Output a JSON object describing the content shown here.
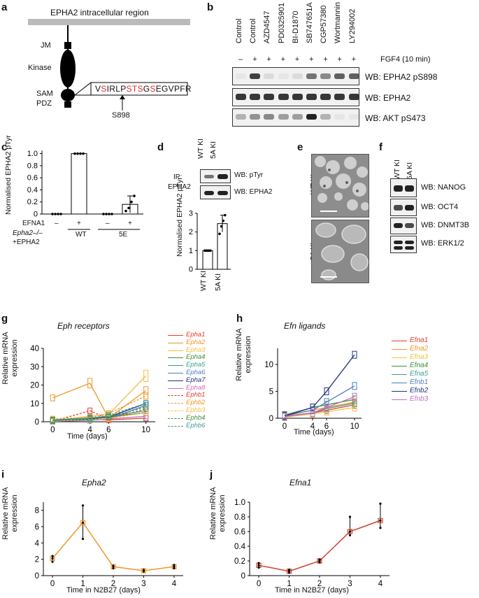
{
  "panels": {
    "a": {
      "label": "a",
      "title": "EPHA2 intracellular region",
      "domains": [
        "JM",
        "Kinase",
        "SAM",
        "PDZ"
      ],
      "sequence": [
        {
          "t": "V",
          "red": false
        },
        {
          "t": "S",
          "red": true
        },
        {
          "t": "IRLP",
          "red": false
        },
        {
          "t": "STS",
          "red": true
        },
        {
          "t": "G",
          "red": false
        },
        {
          "t": "S",
          "red": true
        },
        {
          "t": "EGVPFR",
          "red": false
        }
      ],
      "site": "S898"
    },
    "b": {
      "label": "b",
      "lanes": [
        "Control",
        "Control",
        "AZD4547",
        "PD0325901",
        "BI-D1870",
        "SB747651A",
        "CGP57380",
        "Wortmannin",
        "LY294002"
      ],
      "signs": [
        "–",
        "+",
        "+",
        "+",
        "+",
        "+",
        "+",
        "+",
        "+"
      ],
      "treatment": "FGF4 (10 min)",
      "blots": [
        "WB: EPHA2 pS898",
        "WB: EPHA2",
        "WB: AKT pS473"
      ],
      "intensity": [
        [
          0.05,
          0.85,
          0.1,
          0.05,
          0.1,
          0.6,
          0.5,
          0.7,
          0.7
        ],
        [
          0.9,
          0.9,
          0.9,
          0.9,
          0.9,
          0.9,
          0.9,
          0.9,
          0.9
        ],
        [
          0.3,
          0.45,
          0.5,
          0.4,
          0.4,
          1.0,
          0.3,
          0.05,
          0.05
        ]
      ]
    },
    "c": {
      "label": "c",
      "ylabel": "Normalised EPHA2 pTyr",
      "yticks": [
        "0",
        "0.2",
        "0.4",
        "0.6",
        "0.8",
        "1.0"
      ],
      "efna_label": "EFNA1",
      "signs": [
        "–",
        "+",
        "–",
        "+"
      ],
      "groups": [
        "WT",
        "5E"
      ],
      "genotype_line1": "Epha2–/–",
      "genotype_line2": "+EPHA2"
    },
    "d": {
      "label": "d",
      "lanes": [
        "WT KI",
        "5A KI"
      ],
      "ip_label_1": "IP:",
      "ip_label_2": "EPHA2",
      "blots": [
        "WB: pTyr",
        "WB: EPHA2"
      ],
      "ylabel": "Normalised EPHA2 pTyr",
      "yticks": [
        "0",
        "1",
        "2",
        "3"
      ],
      "xlabels": [
        "WT KI",
        "5A KI"
      ]
    },
    "e": {
      "label": "e",
      "rows": [
        "WT KI",
        "5A KI"
      ]
    },
    "f": {
      "label": "f",
      "lanes": [
        "WT KI",
        "5A KI"
      ],
      "blots": [
        "WB: NANOG",
        "WB: OCT4",
        "WB: DNMT3B",
        "WB: ERK1/2"
      ]
    },
    "g": {
      "label": "g",
      "title": "Eph receptors",
      "ylabel_1": "Relative mRNA",
      "ylabel_2": "expression",
      "xlabel": "Time (days)",
      "yticks": [
        "0",
        "10",
        "20",
        "30",
        "40"
      ],
      "xticks": [
        "0",
        "4",
        "6",
        "10"
      ],
      "legend": [
        "Epha1",
        "Epha2",
        "Epha3",
        "Epha4",
        "Epha5",
        "Epha6",
        "Epha7",
        "Epha8",
        "Ephb1",
        "Ephb2",
        "Ephb3",
        "Ephb4",
        "Ephb6"
      ]
    },
    "h": {
      "label": "h",
      "title": "Efn ligands",
      "ylabel_1": "Relative mRNA",
      "ylabel_2": "expression",
      "xlabel": "Time (days)",
      "yticks": [
        "0",
        "5",
        "10"
      ],
      "xticks": [
        "0",
        "4",
        "6",
        "10"
      ],
      "legend": [
        "Efna1",
        "Efna2",
        "Efna3",
        "Efna4",
        "Efna5",
        "Efnb1",
        "Efnb2",
        "Efnb3"
      ]
    },
    "i": {
      "label": "i",
      "title": "Epha2",
      "ylabel_1": "Relative mRNA",
      "ylabel_2": "expression",
      "xlabel": "Time in N2B27 (days)",
      "yticks": [
        "0",
        "2",
        "4",
        "6",
        "8"
      ],
      "xticks": [
        "0",
        "1",
        "2",
        "3",
        "4"
      ]
    },
    "j": {
      "label": "j",
      "title": "Efna1",
      "ylabel_1": "Relative mRNA",
      "ylabel_2": "expression",
      "xlabel": "Time in N2B27 (days)",
      "yticks": [
        "0",
        "0.2",
        "0.4",
        "0.6",
        "0.8",
        "1.0"
      ],
      "xticks": [
        "0",
        "1",
        "2",
        "3",
        "4"
      ]
    }
  },
  "colors": {
    "g_series": [
      "#e0402a",
      "#f0962a",
      "#f2c040",
      "#3e8e3e",
      "#3aa08a",
      "#4a7fc0",
      "#23307a",
      "#c070c0",
      "#e0402a",
      "#f0962a",
      "#f2c040",
      "#3e8e3e",
      "#3aa08a"
    ],
    "h_series": [
      "#e0402a",
      "#f0962a",
      "#f2c040",
      "#3e8e3e",
      "#3aa08a",
      "#4a7fc0",
      "#23307a",
      "#c070c0"
    ],
    "epha2": "#f0962a",
    "efna1": "#d0402a",
    "sequence_red": "#e03030"
  },
  "chart_data": [
    {
      "type": "bar",
      "panel": "c",
      "categories": [
        "WT –",
        "WT +",
        "5E –",
        "5E +"
      ],
      "values": [
        0.0,
        1.0,
        0.0,
        0.16
      ],
      "errors": [
        0.0,
        0.0,
        0.0,
        0.14
      ],
      "points": [
        [
          0,
          0,
          0,
          0
        ],
        [
          1,
          1,
          1,
          1
        ],
        [
          0,
          0,
          0,
          0
        ],
        [
          0.05,
          0.1,
          0.2,
          0.3
        ]
      ],
      "ylim": [
        0,
        1.1
      ]
    },
    {
      "type": "bar",
      "panel": "d",
      "categories": [
        "WT KI",
        "5A KI"
      ],
      "values": [
        1.0,
        2.45
      ],
      "errors": [
        0.0,
        0.45
      ],
      "points": [
        [
          1,
          1,
          1,
          1
        ],
        [
          1.9,
          2.3,
          2.6,
          2.9
        ]
      ],
      "ylim": [
        0,
        3
      ]
    },
    {
      "type": "line",
      "panel": "g",
      "x": [
        0,
        4,
        6,
        10
      ],
      "ylim": [
        0,
        40
      ],
      "series": [
        {
          "name": "Epha1",
          "values": [
            0.5,
            1.5,
            1.0,
            2.0
          ]
        },
        {
          "name": "Epha2",
          "values": [
            13,
            21,
            2,
            17
          ]
        },
        {
          "name": "Epha3",
          "values": [
            0.5,
            3.0,
            4.0,
            25.0
          ]
        },
        {
          "name": "Epha4",
          "values": [
            1.0,
            2.0,
            2.5,
            5.0
          ]
        },
        {
          "name": "Epha5",
          "values": [
            0.5,
            2.0,
            3.0,
            6.0
          ]
        },
        {
          "name": "Epha6",
          "values": [
            0.2,
            0.8,
            1.5,
            9.0
          ]
        },
        {
          "name": "Epha7",
          "values": [
            0.3,
            1.5,
            2.5,
            10.0
          ]
        },
        {
          "name": "Epha8",
          "values": [
            0.3,
            1.0,
            1.5,
            3.0
          ]
        },
        {
          "name": "Ephb1",
          "values": [
            0.2,
            6.0,
            1.5,
            7.0
          ]
        },
        {
          "name": "Ephb2",
          "values": [
            1.5,
            2.5,
            4.5,
            14.0
          ]
        },
        {
          "name": "Ephb3",
          "values": [
            0.3,
            1.2,
            1.8,
            5.0
          ]
        },
        {
          "name": "Ephb4",
          "values": [
            0.8,
            1.5,
            2.5,
            8.0
          ]
        },
        {
          "name": "Ephb6",
          "values": [
            0.5,
            2.0,
            3.5,
            10.0
          ]
        }
      ]
    },
    {
      "type": "line",
      "panel": "h",
      "x": [
        0,
        4,
        6,
        10
      ],
      "ylim": [
        0,
        13
      ],
      "series": [
        {
          "name": "Efna1",
          "values": [
            0.4,
            1.0,
            1.5,
            2.5
          ]
        },
        {
          "name": "Efna2",
          "values": [
            0.5,
            1.5,
            2.0,
            3.0
          ]
        },
        {
          "name": "Efna3",
          "values": [
            0.2,
            0.8,
            1.2,
            2.0
          ]
        },
        {
          "name": "Efna4",
          "values": [
            0.6,
            2.0,
            2.5,
            3.5
          ]
        },
        {
          "name": "Efna5",
          "values": [
            0.3,
            1.0,
            1.8,
            2.8
          ]
        },
        {
          "name": "Efnb1",
          "values": [
            0.5,
            1.5,
            3.0,
            6.0
          ]
        },
        {
          "name": "Efnb2",
          "values": [
            0.4,
            2.0,
            5.0,
            11.8
          ]
        },
        {
          "name": "Efnb3",
          "values": [
            0.3,
            1.0,
            2.0,
            4.0
          ]
        }
      ]
    },
    {
      "type": "line",
      "panel": "i",
      "name": "Epha2",
      "x": [
        0,
        1,
        2,
        3,
        4
      ],
      "values": [
        2.1,
        6.5,
        1.1,
        0.6,
        1.1
      ],
      "ranges": [
        [
          1.7,
          2.4
        ],
        [
          4.5,
          8.6
        ],
        [
          0.9,
          1.2
        ],
        [
          0.5,
          0.7
        ],
        [
          0.9,
          1.3
        ]
      ],
      "ylim": [
        0,
        9
      ]
    },
    {
      "type": "line",
      "panel": "j",
      "name": "Efna1",
      "x": [
        0,
        1,
        2,
        3,
        4
      ],
      "values": [
        0.14,
        0.06,
        0.2,
        0.6,
        0.75
      ],
      "ranges": [
        [
          0.11,
          0.17
        ],
        [
          0.04,
          0.08
        ],
        [
          0.18,
          0.22
        ],
        [
          0.55,
          0.8
        ],
        [
          0.65,
          0.98
        ]
      ],
      "ylim": [
        0,
        1.0
      ]
    }
  ]
}
